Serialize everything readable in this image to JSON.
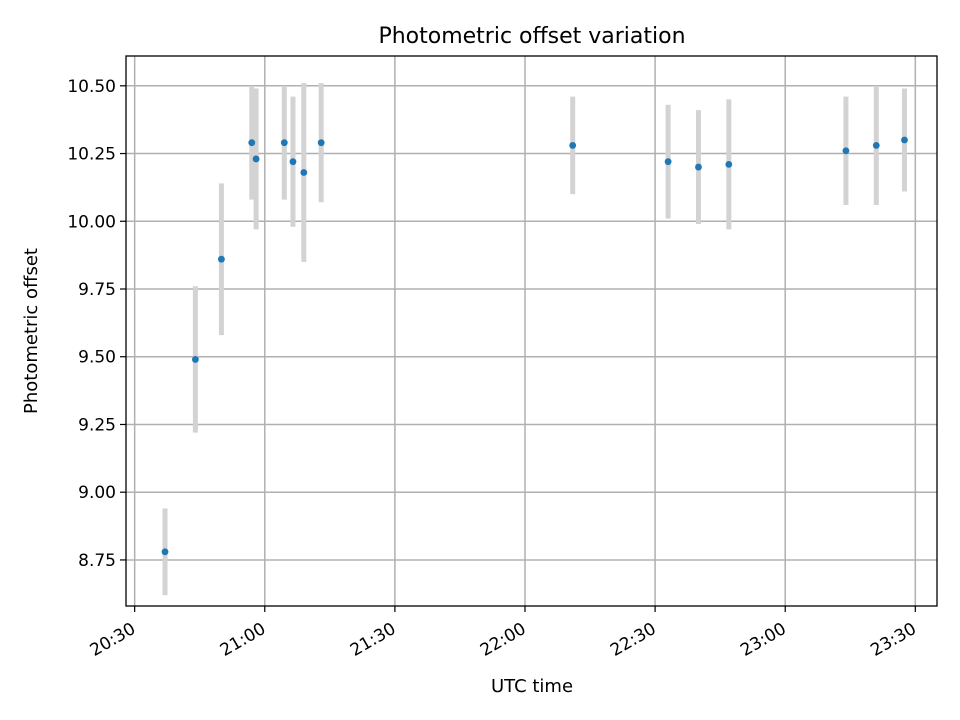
{
  "chart_data": {
    "type": "scatter",
    "title": "Photometric offset variation",
    "xlabel": "UTC time",
    "ylabel": "Photometric offset",
    "xlim": [
      "20:28",
      "23:35"
    ],
    "ylim": [
      8.58,
      10.61
    ],
    "x_ticks": [
      "20:30",
      "21:00",
      "21:30",
      "22:00",
      "22:30",
      "23:00",
      "23:30"
    ],
    "y_ticks": [
      8.75,
      9.0,
      9.25,
      9.5,
      9.75,
      10.0,
      10.25,
      10.5
    ],
    "y_tick_labels": [
      "8.75",
      "9.00",
      "9.25",
      "9.50",
      "9.75",
      "10.00",
      "10.25",
      "10.50"
    ],
    "grid": true,
    "point_color": "#1f77b4",
    "errorbar_color": "#d3d3d3",
    "series": [
      {
        "points": [
          {
            "t": "20:37:00",
            "y": 8.78,
            "err": 0.16
          },
          {
            "t": "20:44:00",
            "y": 9.49,
            "err": 0.27
          },
          {
            "t": "20:50:00",
            "y": 9.86,
            "err": 0.28
          },
          {
            "t": "20:57:00",
            "y": 10.29,
            "err": 0.21
          },
          {
            "t": "20:58:00",
            "y": 10.23,
            "err": 0.26
          },
          {
            "t": "21:04:30",
            "y": 10.29,
            "err": 0.21
          },
          {
            "t": "21:06:30",
            "y": 10.22,
            "err": 0.24
          },
          {
            "t": "21:09:00",
            "y": 10.18,
            "err": 0.33
          },
          {
            "t": "21:13:00",
            "y": 10.29,
            "err": 0.22
          },
          {
            "t": "22:11:00",
            "y": 10.28,
            "err": 0.18
          },
          {
            "t": "22:33:00",
            "y": 10.22,
            "err": 0.21
          },
          {
            "t": "22:40:00",
            "y": 10.2,
            "err": 0.21
          },
          {
            "t": "22:47:00",
            "y": 10.21,
            "err": 0.24
          },
          {
            "t": "23:14:00",
            "y": 10.26,
            "err": 0.2
          },
          {
            "t": "23:21:00",
            "y": 10.28,
            "err": 0.22
          },
          {
            "t": "23:27:30",
            "y": 10.3,
            "err": 0.19
          }
        ]
      }
    ]
  }
}
